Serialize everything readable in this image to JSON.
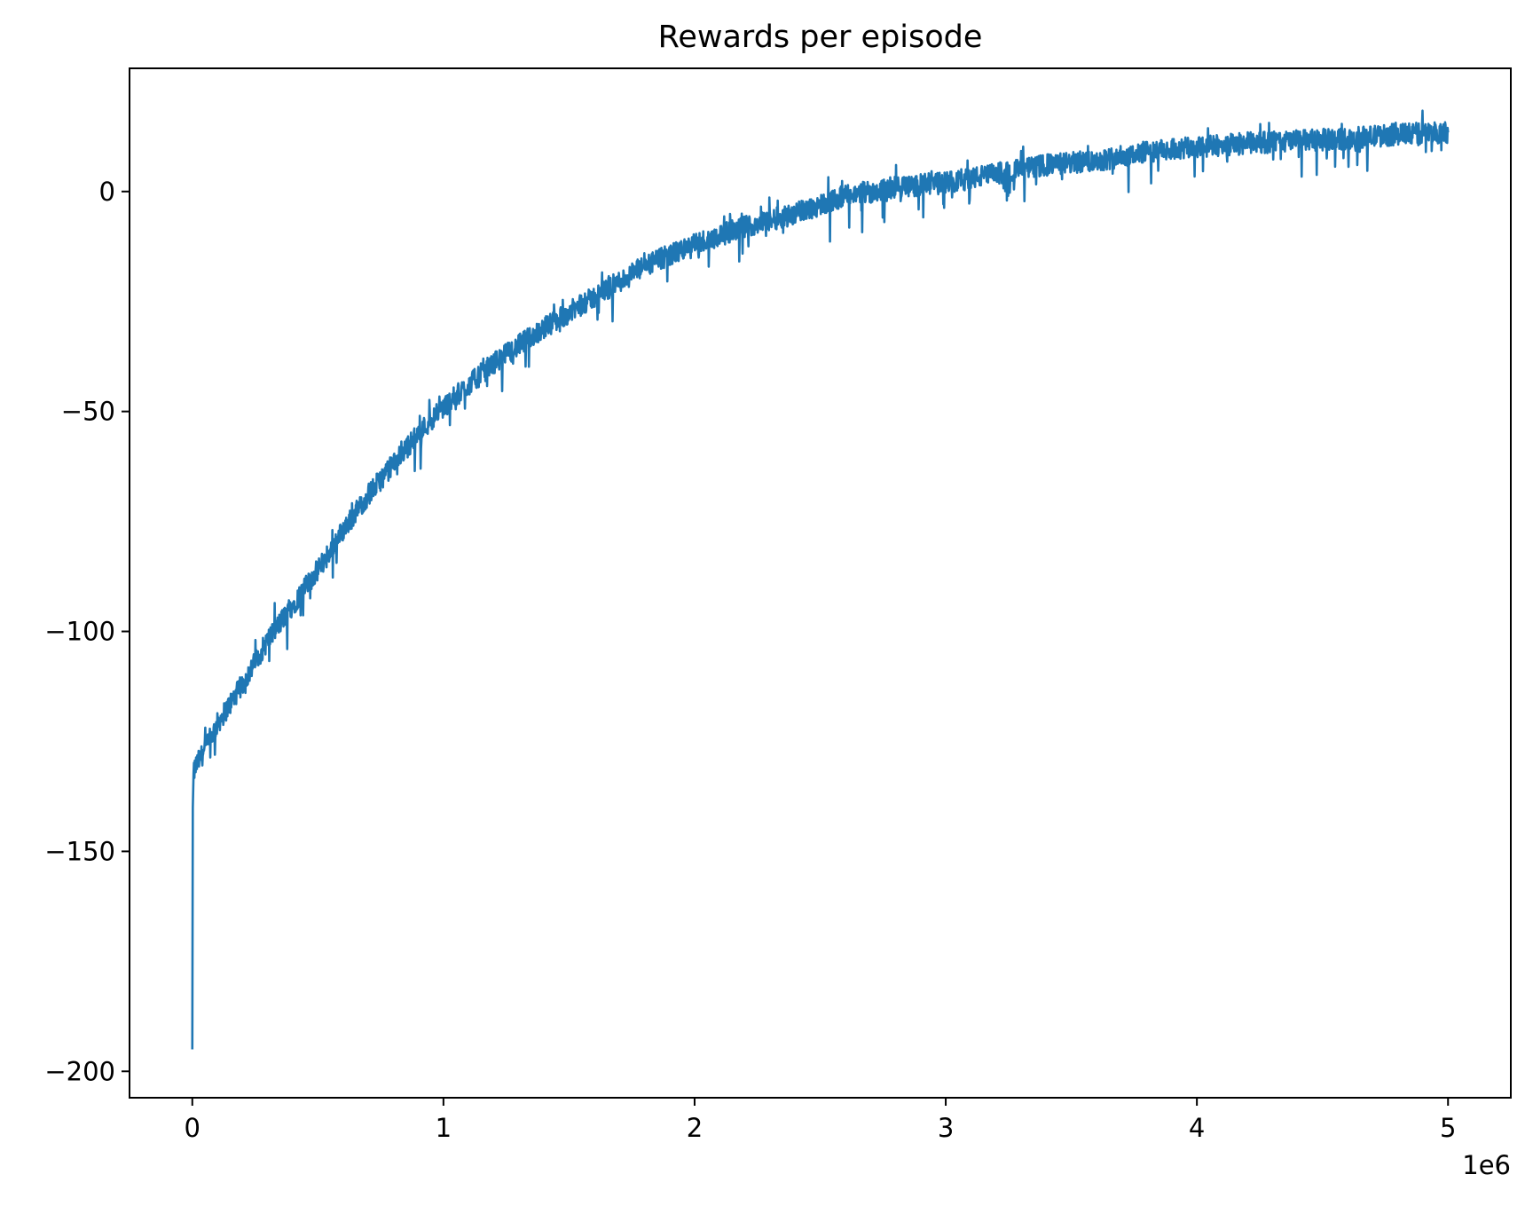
{
  "chart_data": {
    "type": "line",
    "title": "Rewards per episode",
    "xlabel": "",
    "ylabel": "",
    "x_offset_text": "1e6",
    "x_scale_factor": 1000000,
    "xlim": [
      -0.25,
      5.25
    ],
    "ylim": [
      -206,
      28
    ],
    "x_ticks": [
      0,
      1,
      2,
      3,
      4,
      5
    ],
    "x_tick_labels": [
      "0",
      "1",
      "2",
      "3",
      "4",
      "5"
    ],
    "y_ticks": [
      0,
      -50,
      -100,
      -150,
      -200
    ],
    "y_tick_labels": [
      "0",
      "−50",
      "−100",
      "−150",
      "−200"
    ],
    "grid": false,
    "line_color": "#1f77b4",
    "series": [
      {
        "x": [
          0,
          0.002,
          0.005,
          0.01,
          0.05,
          0.1,
          0.2,
          0.3,
          0.4,
          0.5,
          0.6,
          0.7,
          0.8,
          0.9,
          1.0,
          1.2,
          1.4,
          1.6,
          1.8,
          2.0,
          2.2,
          2.4,
          2.6,
          2.8,
          3.0,
          3.2,
          3.4,
          3.6,
          3.8,
          4.0,
          4.2,
          4.4,
          4.6,
          4.8,
          5.0
        ],
        "y": [
          -195,
          -140,
          -133,
          -131,
          -127,
          -121,
          -112,
          -102,
          -94,
          -86,
          -77,
          -69,
          -62,
          -55,
          -49,
          -39,
          -31,
          -24,
          -17,
          -12,
          -8,
          -5,
          -1,
          1,
          2,
          4,
          6,
          7,
          9,
          10,
          11,
          11.5,
          12,
          13,
          13.5
        ]
      }
    ]
  }
}
